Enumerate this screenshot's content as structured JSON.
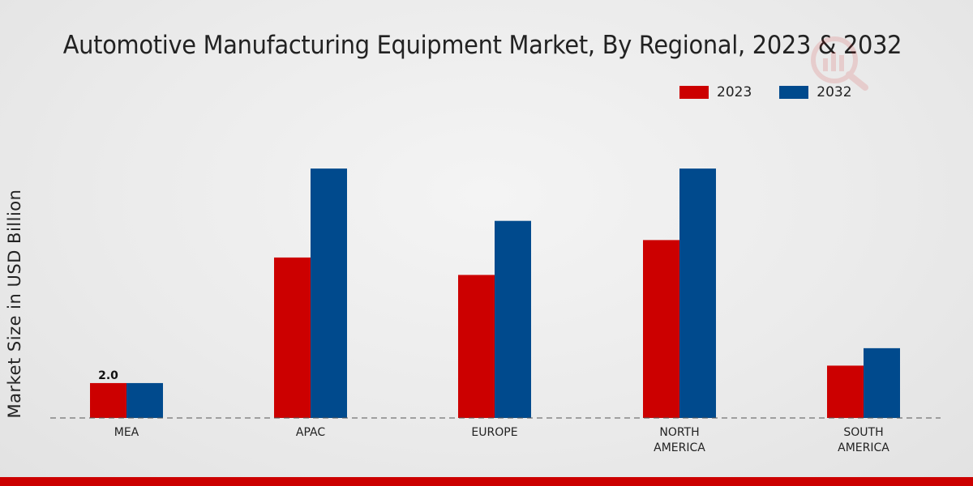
{
  "chart_data": {
    "type": "bar",
    "title": "Automotive Manufacturing Equipment Market, By Regional, 2023 & 2032",
    "xlabel": "",
    "ylabel": "Market Size in USD Billion",
    "categories": [
      "MEA",
      "APAC",
      "EUROPE",
      "NORTH\nAMERICA",
      "SOUTH\nAMERICA"
    ],
    "series": [
      {
        "name": "2023",
        "color": "#cc0000",
        "values": [
          2.0,
          9.2,
          8.2,
          10.2,
          3.0
        ]
      },
      {
        "name": "2032",
        "color": "#004a8d",
        "values": [
          2.0,
          14.3,
          11.3,
          14.3,
          4.0
        ]
      }
    ],
    "data_labels": [
      {
        "series": 0,
        "category": 0,
        "text": "2.0"
      }
    ],
    "ylim": [
      0,
      23.5
    ],
    "grid": false,
    "legend_position": "top-right"
  }
}
